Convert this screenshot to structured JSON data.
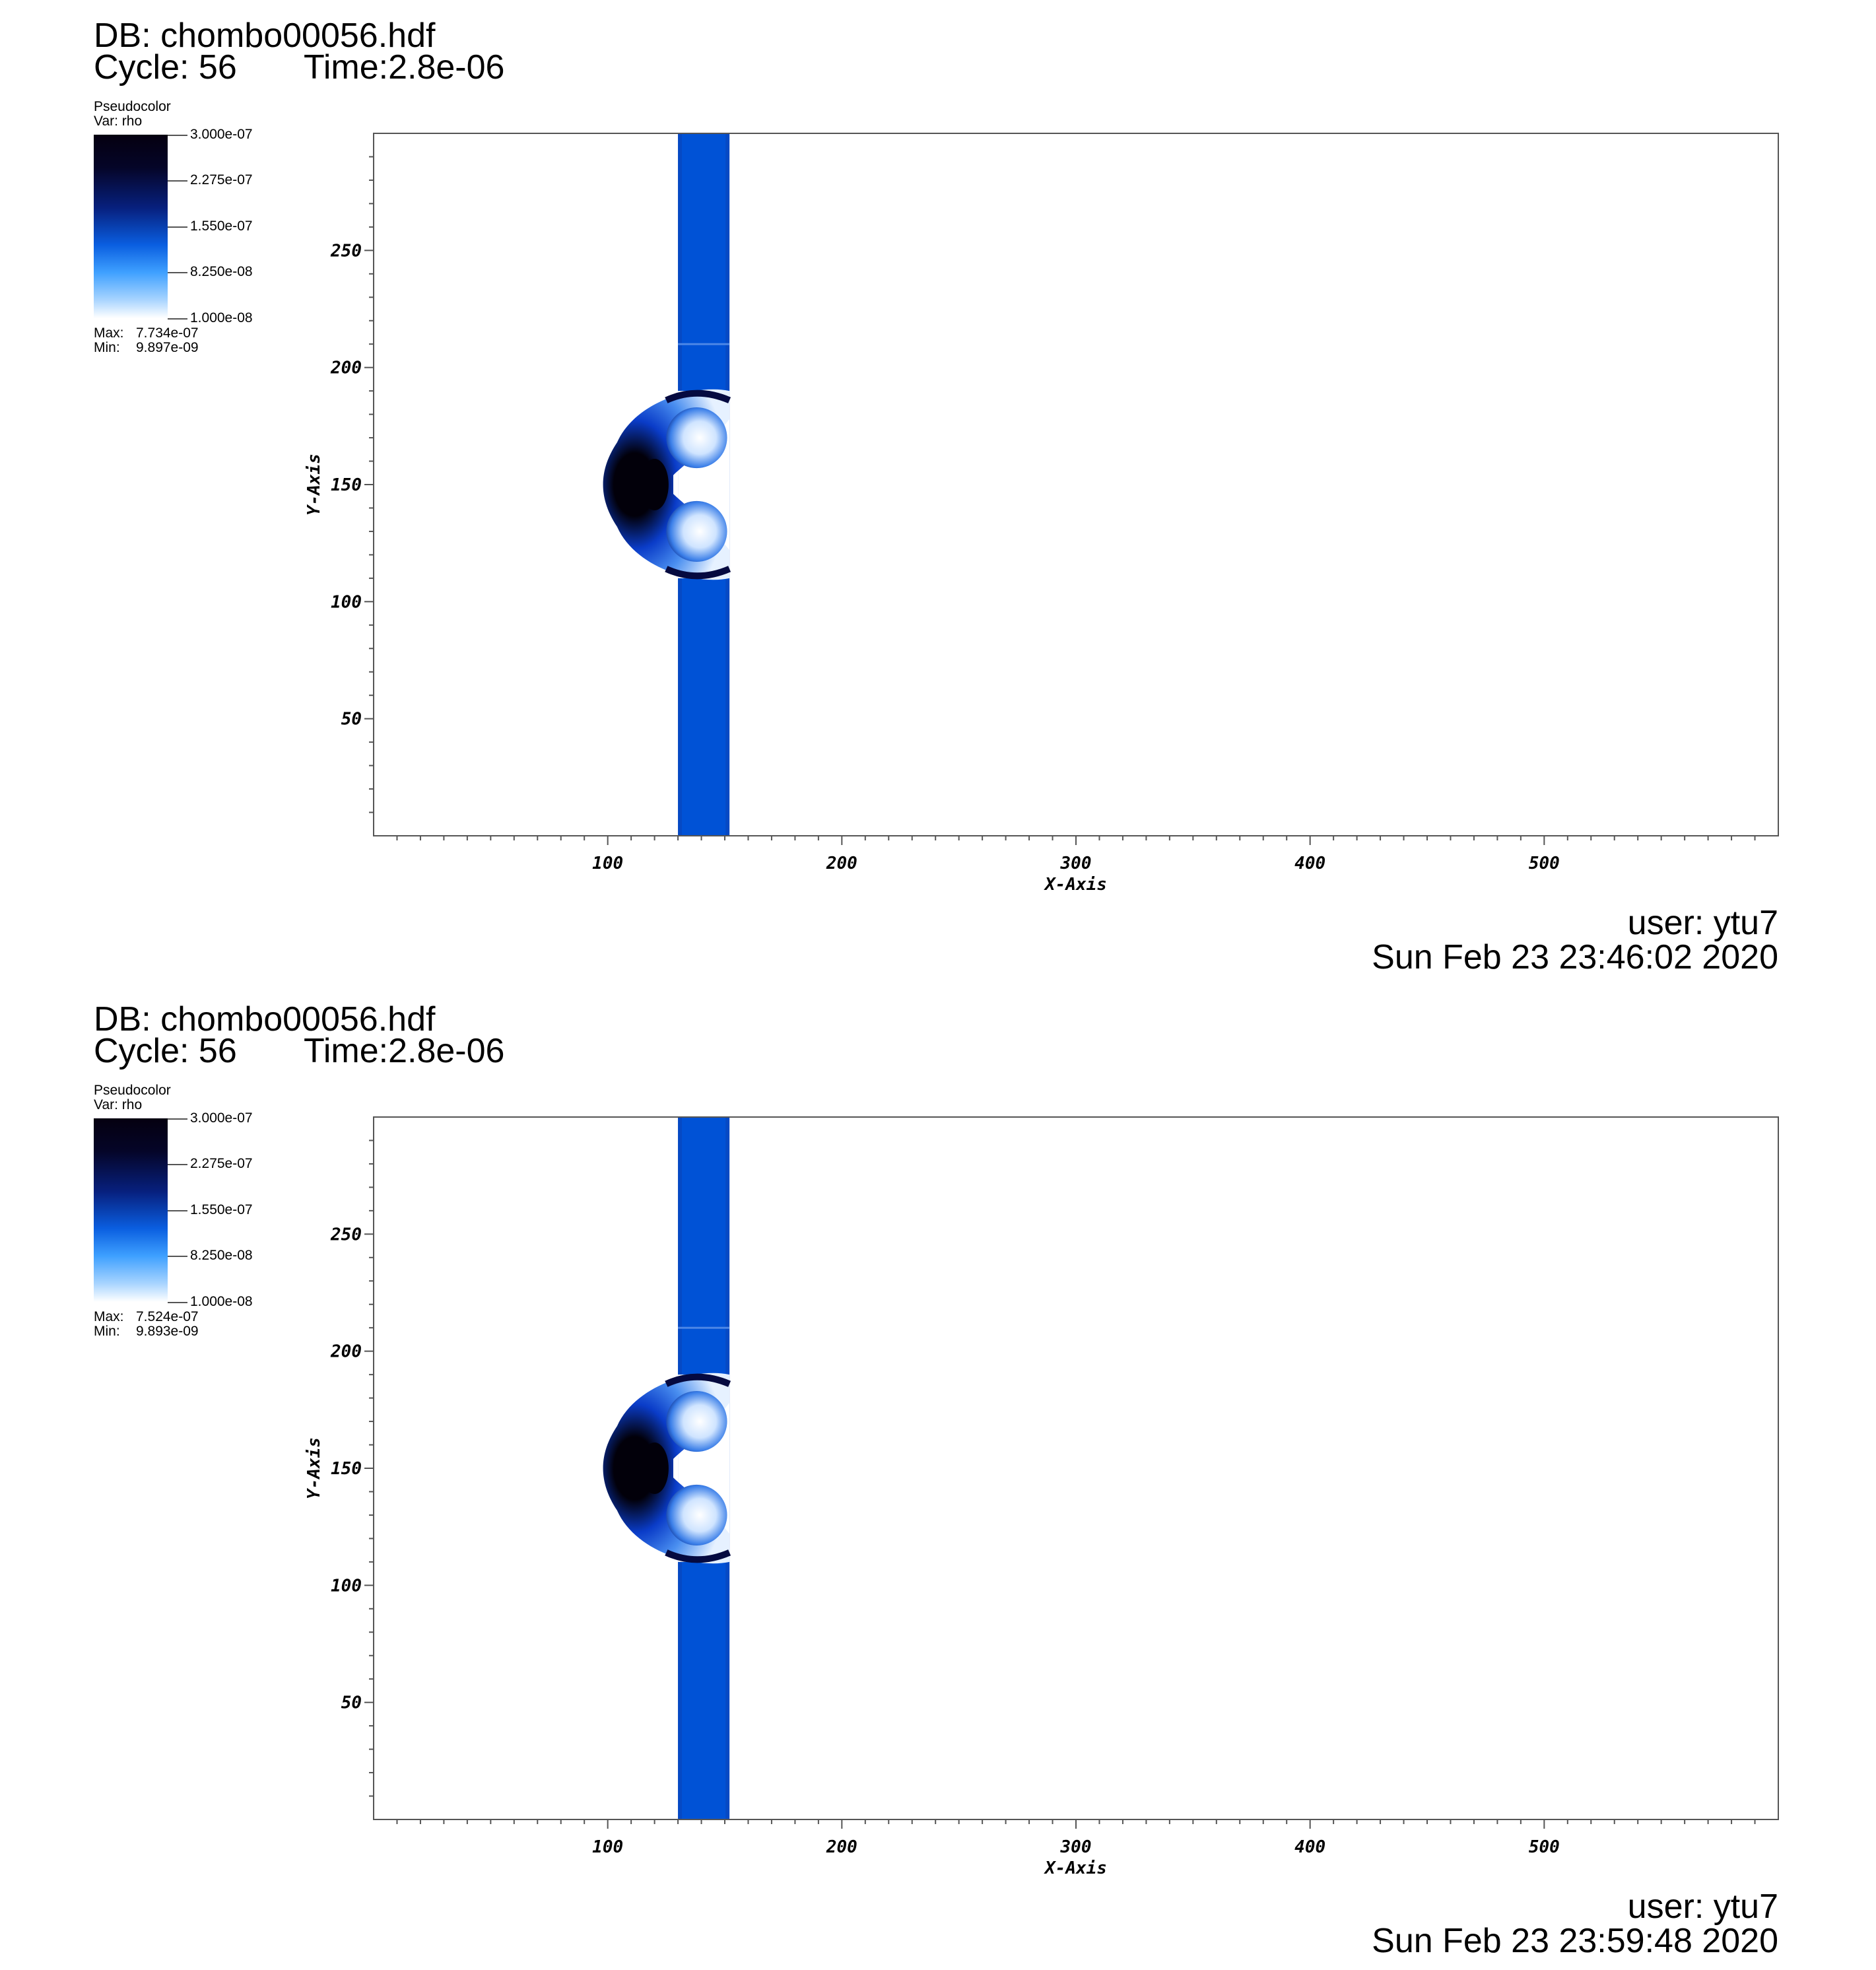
{
  "panels": [
    {
      "db": "DB: chombo00056.hdf",
      "cycle": "Cycle: 56",
      "time": "Time:2.8e-06",
      "legend": {
        "kind": "Pseudocolor",
        "var": "Var: rho",
        "ticks": [
          "3.000e-07",
          "2.275e-07",
          "1.550e-07",
          "8.250e-08",
          "1.000e-08"
        ],
        "max_label": "Max:",
        "max_value": "7.734e-07",
        "min_label": "Min:",
        "min_value": "9.897e-09"
      },
      "user": "user: ytu7",
      "date": "Sun Feb 23 23:46:02 2020"
    },
    {
      "db": "DB: chombo00056.hdf",
      "cycle": "Cycle: 56",
      "time": "Time:2.8e-06",
      "legend": {
        "kind": "Pseudocolor",
        "var": "Var: rho",
        "ticks": [
          "3.000e-07",
          "2.275e-07",
          "1.550e-07",
          "8.250e-08",
          "1.000e-08"
        ],
        "max_label": "Max:",
        "max_value": "7.524e-07",
        "min_label": "Min:",
        "min_value": "9.893e-09"
      },
      "user": "user: ytu7",
      "date": "Sun Feb 23 23:59:48 2020"
    }
  ],
  "chart_data": [
    {
      "type": "heatmap",
      "xlabel": "X-Axis",
      "ylabel": "Y-Axis",
      "xlim": [
        0,
        600
      ],
      "ylim": [
        0,
        300
      ],
      "xticks": [
        100,
        200,
        300,
        400,
        500
      ],
      "yticks": [
        50,
        100,
        150,
        200,
        250
      ],
      "colorbar_range": [
        1e-08,
        3e-07
      ],
      "colors": {
        "band": "#0052d6",
        "dense": "#02000a",
        "mid": "#0a3cc8",
        "light": "#e6f1ff"
      },
      "features": {
        "band_x": [
          130,
          152
        ],
        "bubble_center": [
          120,
          150
        ],
        "bubble_y": [
          110,
          190
        ]
      }
    },
    {
      "type": "heatmap",
      "xlabel": "X-Axis",
      "ylabel": "Y-Axis",
      "xlim": [
        0,
        600
      ],
      "ylim": [
        0,
        300
      ],
      "xticks": [
        100,
        200,
        300,
        400,
        500
      ],
      "yticks": [
        50,
        100,
        150,
        200,
        250
      ],
      "colorbar_range": [
        1e-08,
        3e-07
      ],
      "colors": {
        "band": "#0052d6",
        "dense": "#02000a",
        "mid": "#0a3cc8",
        "light": "#e6f1ff"
      },
      "features": {
        "band_x": [
          130,
          152
        ],
        "bubble_center": [
          120,
          150
        ],
        "bubble_y": [
          110,
          190
        ]
      }
    }
  ]
}
